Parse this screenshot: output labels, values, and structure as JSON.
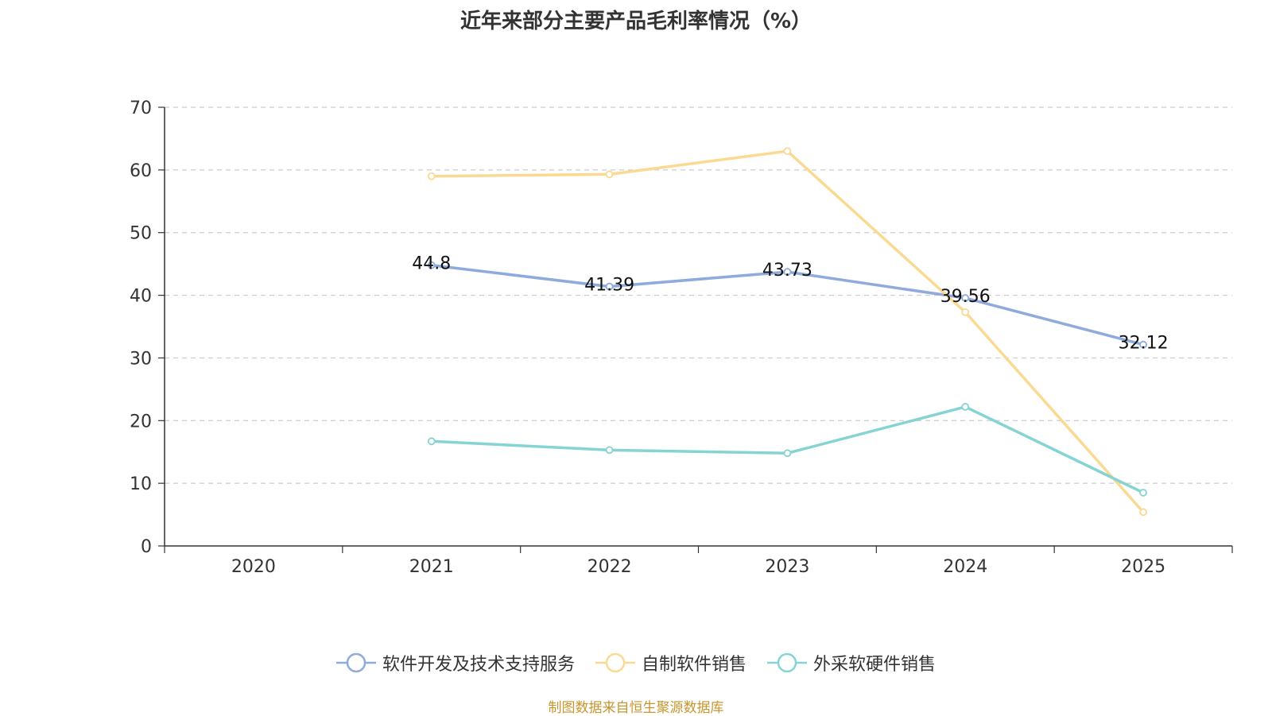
{
  "chart_data": {
    "type": "line",
    "title": "近年来部分主要产品毛利率情况（%）",
    "categories": [
      "2020",
      "2021",
      "2022",
      "2023",
      "2024",
      "2025"
    ],
    "ylim": [
      0,
      70
    ],
    "yticks": [
      0,
      10,
      20,
      30,
      40,
      50,
      60,
      70
    ],
    "grid": true,
    "legend_position": "bottom",
    "series": [
      {
        "name": "软件开发及技术支持服务",
        "color": "#8faadc",
        "show_labels": true,
        "values": [
          null,
          44.8,
          41.39,
          43.73,
          39.56,
          32.12
        ],
        "labels": [
          null,
          "44.8",
          "41.39",
          "43.73",
          "39.56",
          "32.12"
        ]
      },
      {
        "name": "自制软件销售",
        "color": "#fad993",
        "show_labels": false,
        "values": [
          null,
          59.0,
          59.3,
          63.0,
          37.3,
          5.4
        ],
        "labels": [
          null,
          null,
          null,
          null,
          null,
          null
        ]
      },
      {
        "name": "外采软硬件销售",
        "color": "#86d3d3",
        "show_labels": false,
        "values": [
          null,
          16.7,
          15.3,
          14.8,
          22.2,
          8.5
        ],
        "labels": [
          null,
          null,
          null,
          null,
          null,
          null
        ]
      }
    ]
  },
  "source_note": "制图数据来自恒生聚源数据库"
}
